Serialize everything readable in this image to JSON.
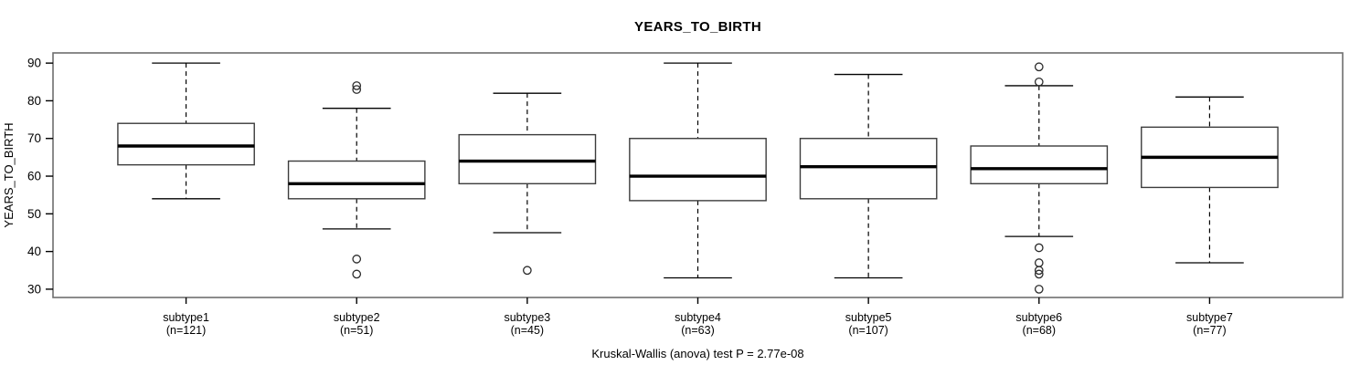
{
  "chart_data": {
    "type": "boxplot",
    "title": "YEARS_TO_BIRTH",
    "ylabel": "YEARS_TO_BIRTH",
    "caption": "Kruskal-Wallis (anova) test P = 2.77e-08",
    "ylim": [
      27.8,
      92.7
    ],
    "yticks": [
      30,
      40,
      50,
      60,
      70,
      80,
      90
    ],
    "grid": false,
    "legend": "none",
    "categories": [
      "subtype1",
      "subtype2",
      "subtype3",
      "subtype4",
      "subtype5",
      "subtype6",
      "subtype7"
    ],
    "series": [
      {
        "label": "subtype1",
        "sublabel": "(n=121)",
        "n": 121,
        "whisker_low": 54,
        "q1": 63,
        "median": 68,
        "q3": 74,
        "whisker_high": 90,
        "outliers": []
      },
      {
        "label": "subtype2",
        "sublabel": "(n=51)",
        "n": 51,
        "whisker_low": 46,
        "q1": 54,
        "median": 58,
        "q3": 64,
        "whisker_high": 78,
        "outliers": [
          84,
          83,
          38,
          34
        ]
      },
      {
        "label": "subtype3",
        "sublabel": "(n=45)",
        "n": 45,
        "whisker_low": 45,
        "q1": 58,
        "median": 64,
        "q3": 71,
        "whisker_high": 82,
        "outliers": [
          35
        ]
      },
      {
        "label": "subtype4",
        "sublabel": "(n=63)",
        "n": 63,
        "whisker_low": 33,
        "q1": 53.5,
        "median": 60,
        "q3": 70,
        "whisker_high": 90,
        "outliers": []
      },
      {
        "label": "subtype5",
        "sublabel": "(n=107)",
        "n": 107,
        "whisker_low": 33,
        "q1": 54,
        "median": 62.5,
        "q3": 70,
        "whisker_high": 87,
        "outliers": []
      },
      {
        "label": "subtype6",
        "sublabel": "(n=68)",
        "n": 68,
        "whisker_low": 44,
        "q1": 58,
        "median": 62,
        "q3": 68,
        "whisker_high": 84,
        "outliers": [
          89,
          85,
          41,
          37,
          35,
          34,
          30
        ]
      },
      {
        "label": "subtype7",
        "sublabel": "(n=77)",
        "n": 77,
        "whisker_low": 37,
        "q1": 57,
        "median": 65,
        "q3": 73,
        "whisker_high": 81,
        "outliers": []
      }
    ],
    "colors": {
      "background": "#ffffff",
      "frame": "#6e6e6e",
      "box_border": "#3c3c3c",
      "box_fill": "#ffffff",
      "median": "#000000",
      "whisker": "#000000",
      "outlier": "#2b2b2b",
      "text": "#000000"
    }
  }
}
